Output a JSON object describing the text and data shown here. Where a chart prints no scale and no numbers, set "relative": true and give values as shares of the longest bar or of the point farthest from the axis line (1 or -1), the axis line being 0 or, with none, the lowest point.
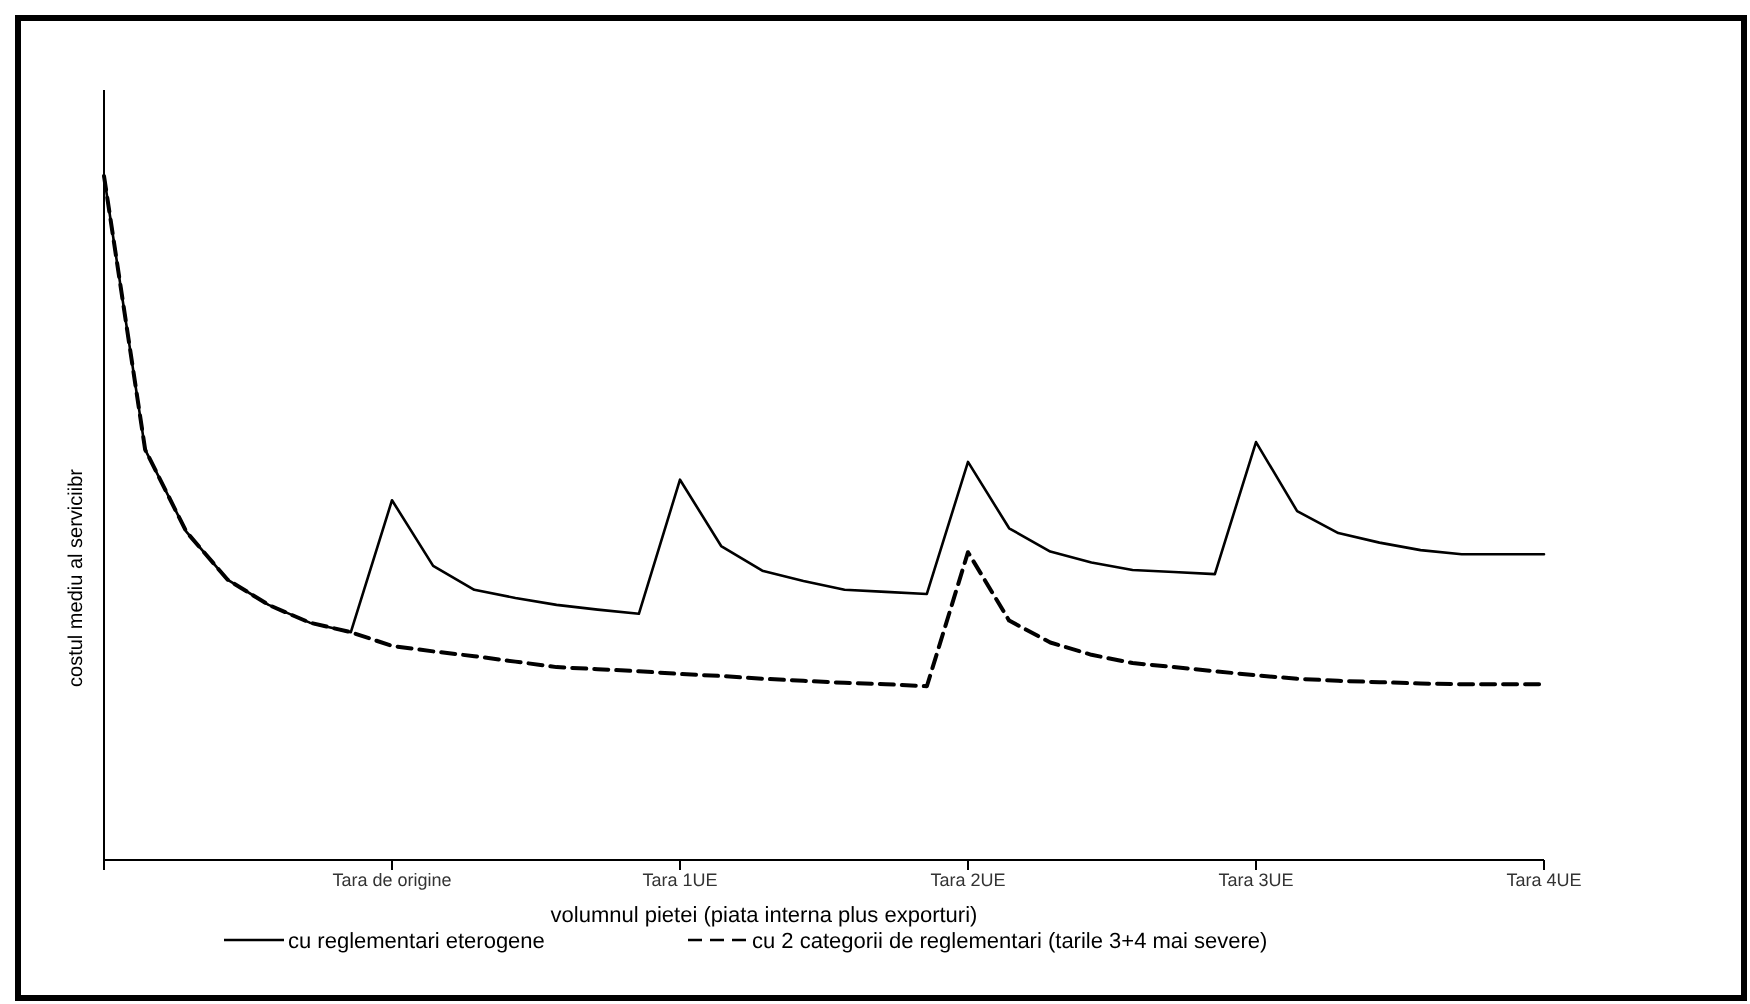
{
  "chart_data": {
    "type": "line",
    "relative": true,
    "xlabel": "volumnul pietei (piata interna plus exporturi)",
    "ylabel": "costul mediu al serviciibr",
    "categories": [
      null,
      null,
      null,
      null,
      null,
      null,
      null,
      "Tara de origine",
      null,
      null,
      null,
      null,
      null,
      null,
      "Tara 1UE",
      null,
      null,
      null,
      null,
      null,
      null,
      "Tara 2UE",
      null,
      null,
      null,
      null,
      null,
      null,
      "Tara 3UE",
      null,
      null,
      null,
      null,
      null,
      null,
      "Tara 4UE"
    ],
    "legend": "bottom",
    "grid": false,
    "marker": "none",
    "series": [
      {
        "name": "cu reglementari eterogene",
        "color": "#000000",
        "line_style": "solid",
        "values": [
          1,
          0.6,
          0.48,
          0.41,
          0.373,
          0.347,
          0.333,
          0.526,
          0.43,
          0.395,
          0.383,
          0.373,
          0.366,
          0.36,
          0.556,
          0.459,
          0.423,
          0.408,
          0.395,
          0.392,
          0.389,
          0.582,
          0.485,
          0.451,
          0.435,
          0.424,
          0.421,
          0.418,
          0.611,
          0.51,
          0.478,
          0.464,
          0.453,
          0.447,
          0.447,
          0.447
        ]
      },
      {
        "name": "cu 2 categorii de reglementari (tarile 3+4 mai severe)",
        "color": "#000000",
        "line_style": "dashed",
        "values": [
          1,
          0.6,
          0.48,
          0.41,
          0.373,
          0.347,
          0.333,
          0.313,
          0.305,
          0.298,
          0.29,
          0.282,
          0.279,
          0.276,
          0.272,
          0.269,
          0.265,
          0.262,
          0.259,
          0.257,
          0.254,
          0.45,
          0.35,
          0.318,
          0.3,
          0.288,
          0.282,
          0.276,
          0.27,
          0.265,
          0.262,
          0.26,
          0.258,
          0.257,
          0.257,
          0.257
        ]
      }
    ]
  }
}
